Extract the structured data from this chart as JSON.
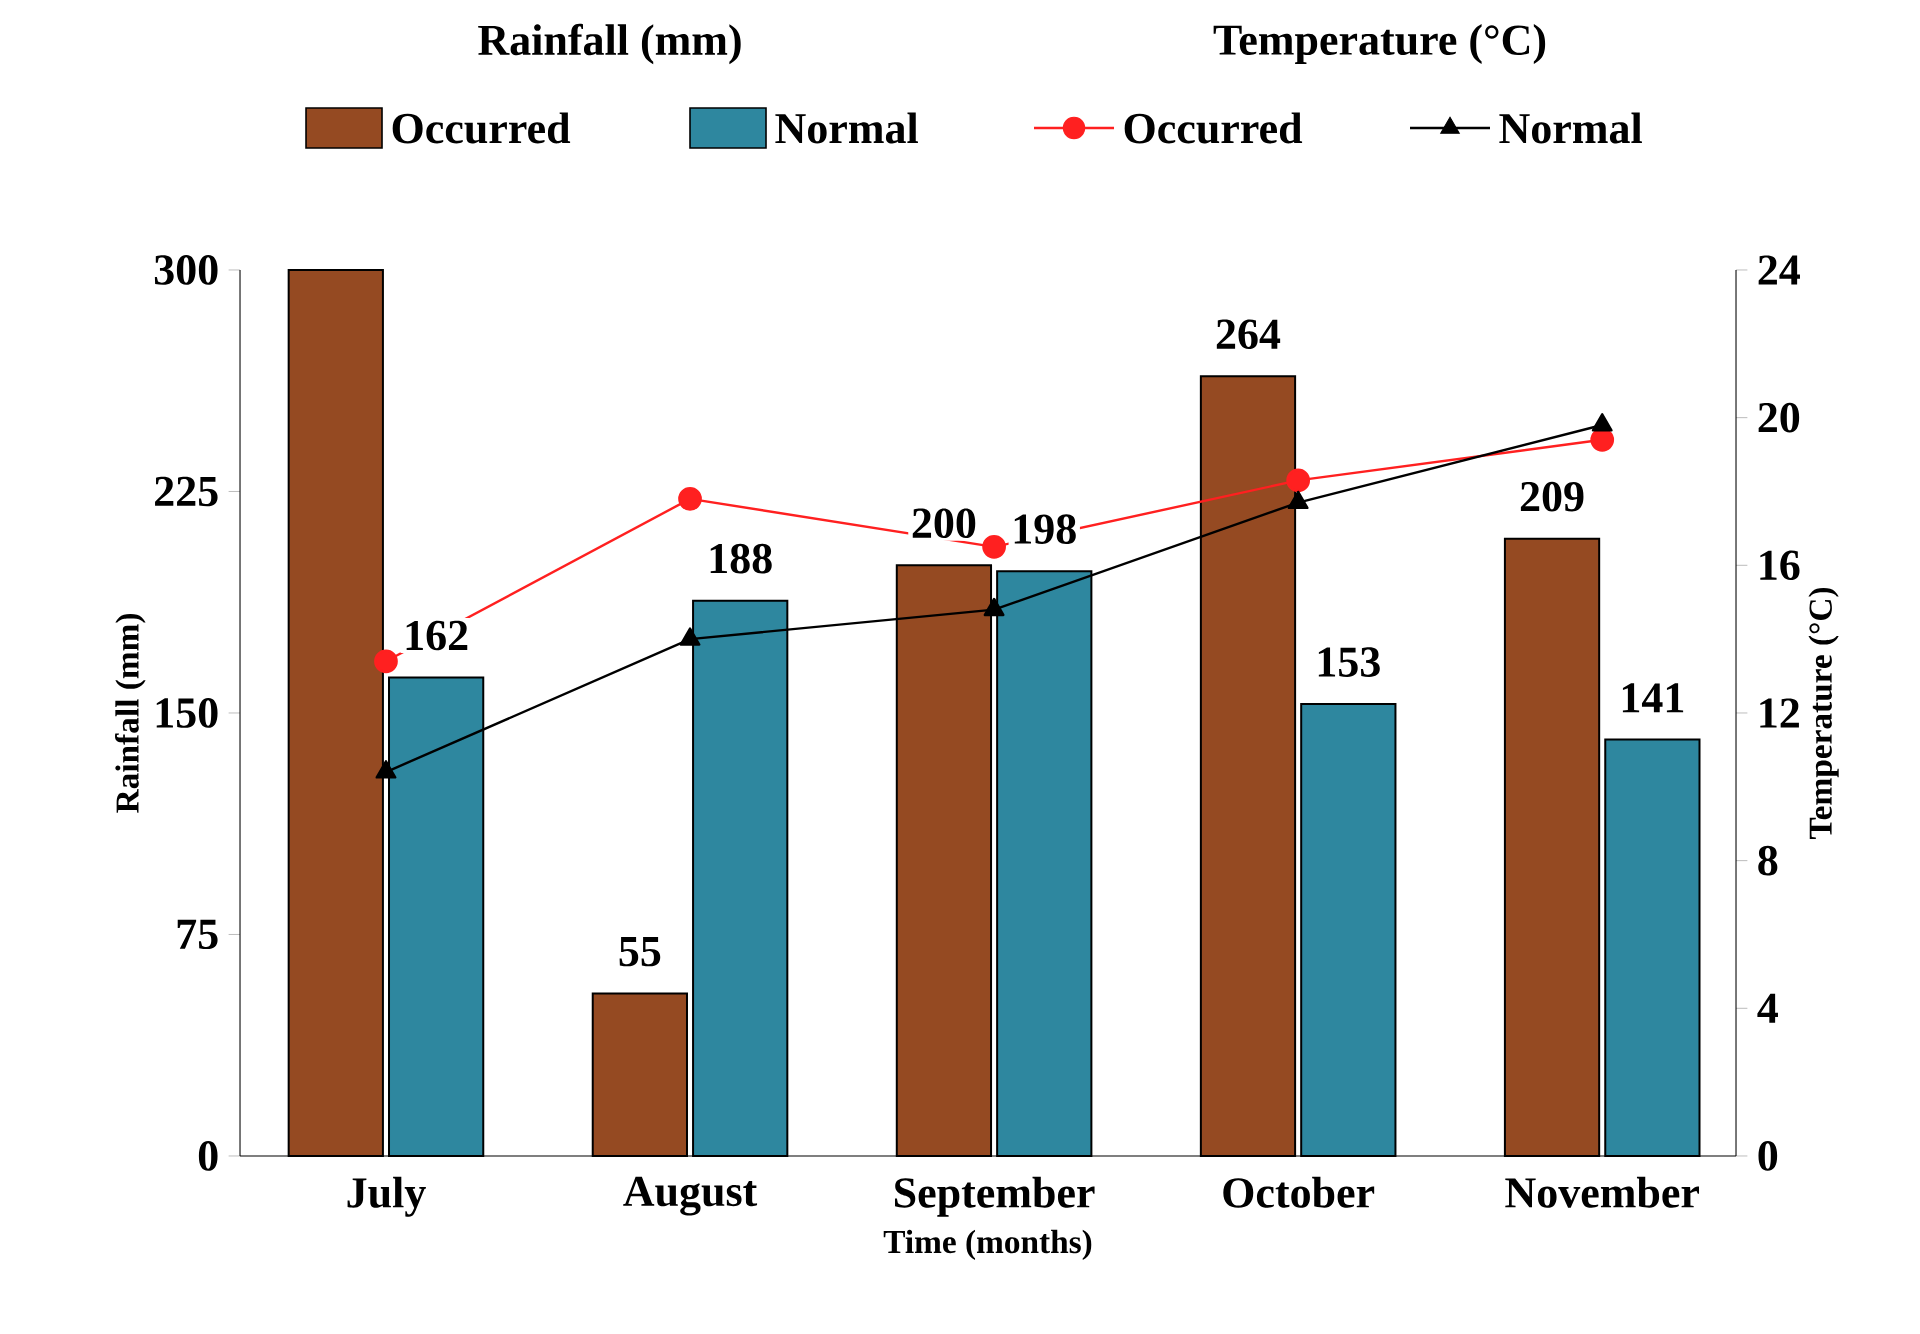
{
  "chart_data": {
    "type": "bar",
    "xlabel": "Time (months)",
    "ylabel": "Rainfall (mm)",
    "y2label": "Temperature (°C)",
    "categories": [
      "July",
      "August",
      "September",
      "October",
      "November"
    ],
    "series": [
      {
        "name": "Occurred",
        "color": "#954a22",
        "values": [
          300,
          55,
          200,
          264,
          209
        ],
        "value_labels": [
          null,
          "55",
          "200",
          "264",
          "209"
        ]
      },
      {
        "name": "Normal",
        "color": "#2e879f",
        "values": [
          162,
          188,
          198,
          153,
          141
        ],
        "value_labels": [
          "162",
          "188",
          "198",
          "153",
          "141"
        ]
      },
      {
        "name": "Occurred",
        "type": "line",
        "axis": "y2",
        "color": "#ff2020",
        "marker": "circle",
        "line_style": "solid",
        "values": [
          13.4,
          17.8,
          16.5,
          18.3,
          19.4
        ]
      },
      {
        "name": "Normal",
        "type": "line",
        "axis": "y2",
        "color": "#000000",
        "marker": "triangle",
        "line_style": "solid",
        "values": [
          10.4,
          14.0,
          14.8,
          17.7,
          19.8
        ]
      }
    ],
    "ylim": [
      0,
      300
    ],
    "yticks": [
      0,
      75,
      150,
      225,
      300
    ],
    "y2lim": [
      0,
      24
    ],
    "y2ticks": [
      0,
      4,
      8,
      12,
      16,
      20,
      24
    ],
    "annotations": [
      "Rainfall (mm)",
      "Temperature (°C)"
    ],
    "legend": "top",
    "grid": false
  }
}
